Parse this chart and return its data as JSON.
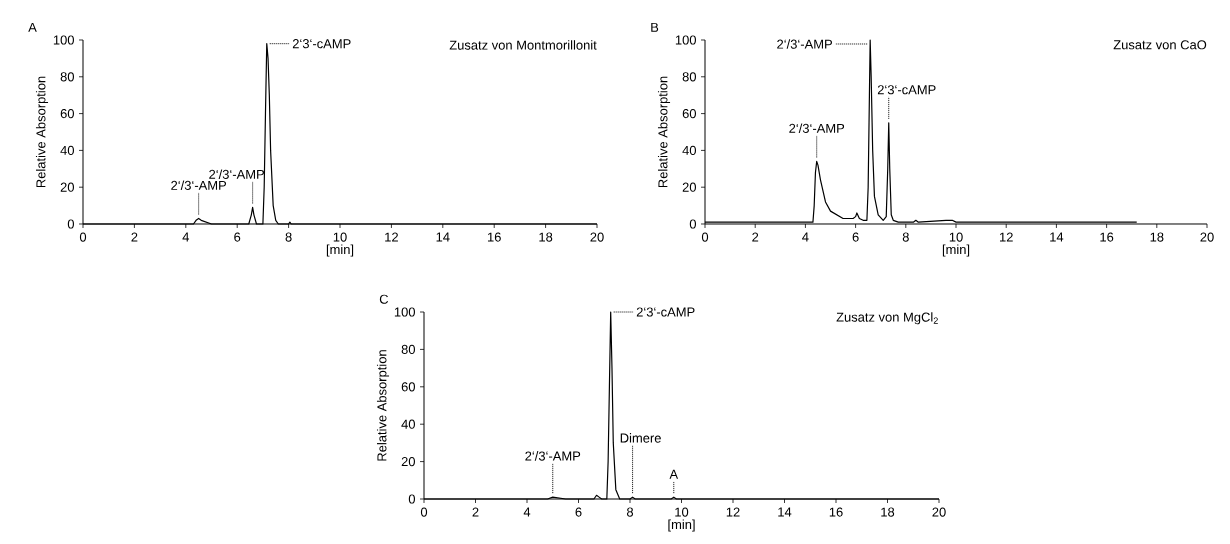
{
  "chart_data": [
    {
      "type": "line",
      "title": "Zusatz von Montmorillonit",
      "xlabel": "[min]",
      "ylabel": "Relative Absorption",
      "xlim": [
        0,
        20
      ],
      "ylim": [
        0,
        100
      ],
      "xticks": [
        0,
        2,
        4,
        6,
        8,
        10,
        12,
        14,
        16,
        18,
        20
      ],
      "yticks": [
        0,
        20,
        40,
        60,
        80,
        100
      ],
      "series": [
        {
          "color": "#000000",
          "x": [
            0,
            4.3,
            4.4,
            4.5,
            4.6,
            4.8,
            5.0,
            6.45,
            6.55,
            6.6,
            6.65,
            6.75,
            7.0,
            7.05,
            7.1,
            7.15,
            7.2,
            7.25,
            7.3,
            7.4,
            7.5,
            7.6,
            8.0,
            8.05,
            8.1,
            8.3,
            9.6,
            9.7,
            20
          ],
          "values": [
            0,
            0,
            2,
            3,
            2,
            1,
            0,
            0,
            5,
            9,
            5,
            0,
            0,
            20,
            60,
            98,
            90,
            70,
            40,
            10,
            2,
            0,
            0,
            1,
            0,
            0,
            0,
            0,
            0
          ]
        }
      ],
      "annotations": [
        "A",
        {
          "text": "2‘/3‘-AMP",
          "x": 4.5,
          "y": 3
        },
        {
          "text": "2‘/3‘-AMP",
          "x": 6.6,
          "y": 9
        },
        {
          "text": "2‘3‘-cAMP",
          "x": 7.15,
          "y": 98
        }
      ]
    },
    {
      "type": "line",
      "title": "Zusatz von CaO",
      "xlabel": "[min]",
      "ylabel": "Relative Absorption",
      "xlim": [
        0,
        20
      ],
      "ylim": [
        0,
        100
      ],
      "xticks": [
        0,
        2,
        4,
        6,
        8,
        10,
        12,
        14,
        16,
        18,
        20
      ],
      "yticks": [
        0,
        20,
        40,
        60,
        80,
        100
      ],
      "series": [
        {
          "color": "#000000",
          "x": [
            0,
            4.3,
            4.35,
            4.4,
            4.45,
            4.5,
            4.6,
            4.8,
            5.0,
            5.5,
            5.9,
            6.0,
            6.05,
            6.15,
            6.3,
            6.45,
            6.5,
            6.55,
            6.58,
            6.62,
            6.68,
            6.75,
            6.9,
            7.1,
            7.22,
            7.28,
            7.32,
            7.36,
            7.42,
            7.5,
            7.7,
            8.3,
            8.4,
            8.5,
            9.6,
            9.7,
            9.85,
            10.0,
            11.0,
            17.2
          ],
          "values": [
            1,
            1,
            10,
            28,
            34,
            32,
            24,
            12,
            7,
            3,
            3,
            4,
            6,
            3,
            2,
            2,
            20,
            70,
            100,
            80,
            40,
            15,
            5,
            2,
            4,
            30,
            55,
            30,
            5,
            2,
            1,
            1,
            2,
            1,
            2,
            2,
            2,
            1,
            1,
            1
          ]
        }
      ],
      "annotations": [
        "B",
        {
          "text": "2‘/3‘-AMP",
          "x": 4.45,
          "y": 34
        },
        {
          "text": "2‘/3‘-AMP",
          "x": 6.58,
          "y": 100
        },
        {
          "text": "2‘3‘-cAMP",
          "x": 7.32,
          "y": 55
        }
      ]
    },
    {
      "type": "line",
      "title": "Zusatz von MgCl$_{2}$",
      "xlabel": "[min]",
      "ylabel": "Relative Absorption",
      "xlim": [
        0,
        20
      ],
      "ylim": [
        0,
        100
      ],
      "xticks": [
        0,
        2,
        4,
        6,
        8,
        10,
        12,
        14,
        16,
        18,
        20
      ],
      "yticks": [
        0,
        20,
        40,
        60,
        80,
        100
      ],
      "series": [
        {
          "color": "#000000",
          "x": [
            0,
            4.8,
            5.0,
            5.5,
            6.6,
            6.7,
            6.8,
            6.9,
            7.1,
            7.15,
            7.2,
            7.25,
            7.3,
            7.35,
            7.45,
            7.6,
            8.0,
            8.1,
            8.2,
            9.6,
            9.7,
            9.8,
            20
          ],
          "values": [
            0,
            0,
            1,
            0,
            0,
            2,
            1,
            0,
            0,
            20,
            60,
            100,
            70,
            30,
            5,
            0,
            0,
            1,
            0,
            0,
            1,
            0,
            0
          ]
        }
      ],
      "annotations": [
        "C",
        {
          "text": "2‘/3‘-AMP",
          "x": 5.0,
          "y": 1
        },
        {
          "text": "2‘3‘-cAMP",
          "x": 7.25,
          "y": 100
        },
        {
          "text": "Dimere",
          "x": 8.1,
          "y": 1
        },
        {
          "text": "A",
          "x": 9.7,
          "y": 1
        }
      ]
    }
  ]
}
